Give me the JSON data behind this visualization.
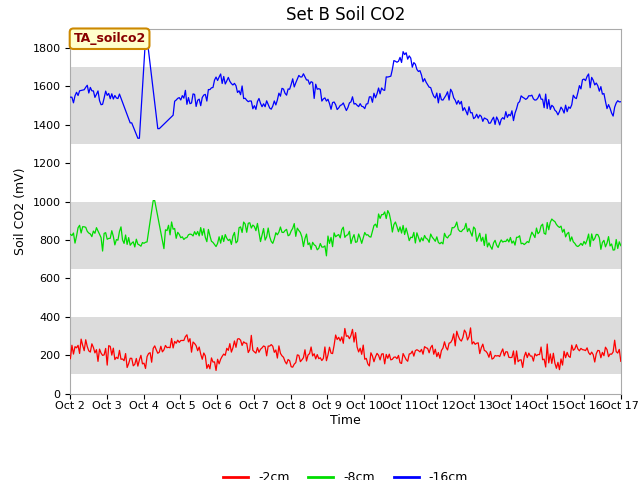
{
  "title": "Set B Soil CO2",
  "ylabel": "Soil CO2 (mV)",
  "xlabel": "Time",
  "xlim": [
    0,
    360
  ],
  "ylim": [
    0,
    1900
  ],
  "yticks": [
    0,
    200,
    400,
    600,
    800,
    1000,
    1200,
    1400,
    1600,
    1800
  ],
  "xtick_labels": [
    "Oct 2",
    "Oct 3",
    "Oct 4",
    "Oct 5",
    "Oct 6",
    "Oct 7",
    "Oct 8",
    "Oct 9",
    "Oct 10",
    "Oct 11",
    "Oct 12",
    "Oct 13",
    "Oct 14",
    "Oct 15",
    "Oct 16",
    "Oct 17"
  ],
  "color_2cm": "#ff0000",
  "color_8cm": "#00dd00",
  "color_16cm": "#0000ff",
  "legend_labels": [
    "-2cm",
    "-8cm",
    "-16cm"
  ],
  "annotation_text": "TA_soilco2",
  "annotation_color": "#880000",
  "annotation_bg": "#ffffcc",
  "annotation_border": "#cc8800",
  "band_color": "#dcdcdc",
  "band_ranges": [
    [
      100,
      400
    ],
    [
      650,
      1000
    ],
    [
      1300,
      1700
    ]
  ],
  "title_fontsize": 12,
  "axis_fontsize": 9,
  "tick_fontsize": 8
}
